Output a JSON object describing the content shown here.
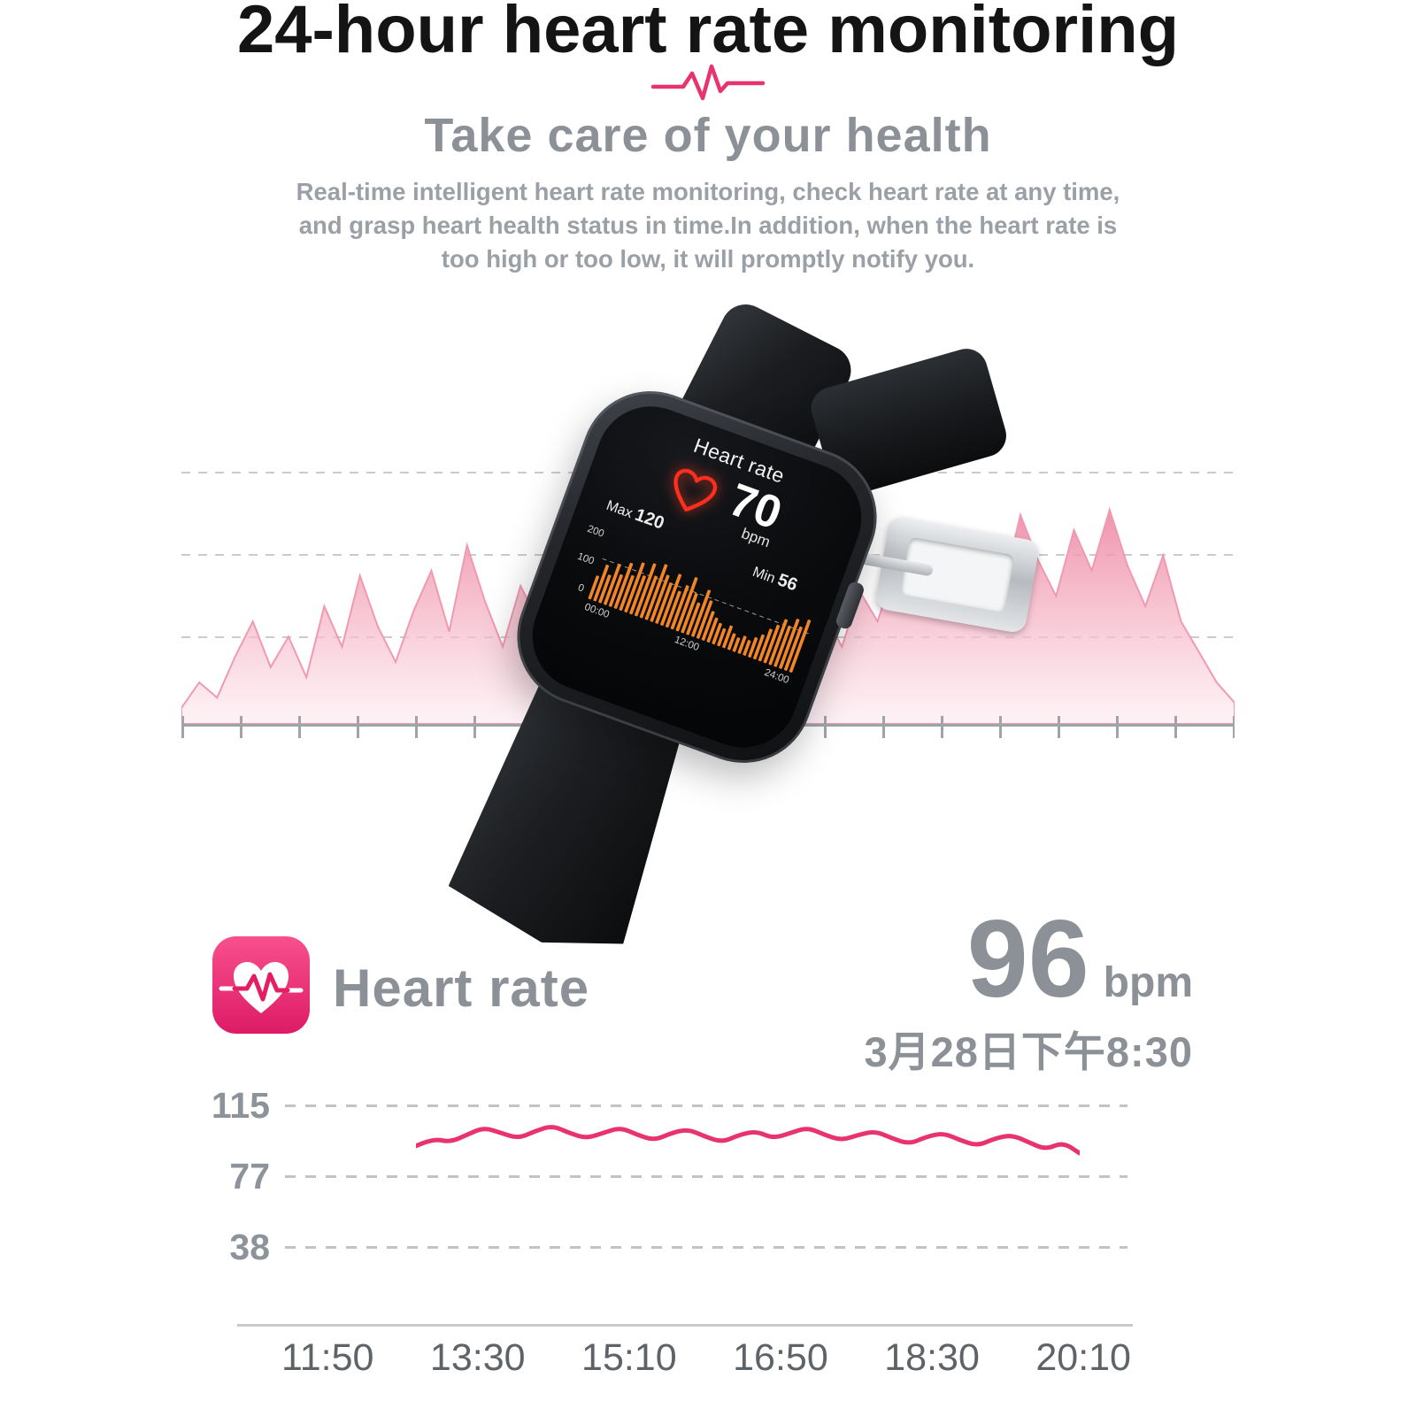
{
  "header": {
    "title": "24-hour heart rate monitoring",
    "subtitle": "Take care of your health",
    "description": [
      "Real-time intelligent heart rate monitoring, check heart rate at any time,",
      "and grasp heart health status in time.In addition, when the heart rate is",
      "too high or too low, it will promptly notify you."
    ],
    "accent_color": "#e8336e"
  },
  "watch_screen": {
    "title": "Heart rate",
    "value": "70",
    "unit": "bpm",
    "max_label": "Max",
    "max_value": "120",
    "min_label": "Min",
    "min_value": "56"
  },
  "summary": {
    "label": "Heart rate",
    "value": "96",
    "unit": "bpm",
    "datetime": "3月28日下午8:30"
  },
  "chart_data": [
    {
      "type": "line",
      "name": "daily-heart-rate",
      "title": "Heart rate through the day (bpm)",
      "x_ticks": [
        "11:50",
        "13:30",
        "15:10",
        "16:50",
        "18:30",
        "20:10"
      ],
      "y_ticks": [
        "115",
        "77",
        "38"
      ],
      "ylim": [
        0,
        140
      ],
      "grid": "dashed-horizontal",
      "legend": "none",
      "color": "#e8336e",
      "series": [
        {
          "name": "heart_rate_bpm",
          "values": [
            93,
            97,
            95,
            99,
            103,
            100,
            97,
            101,
            104,
            100,
            97,
            100,
            103,
            99,
            96,
            100,
            102,
            98,
            95,
            99,
            101,
            97,
            100,
            103,
            99,
            96,
            99,
            101,
            97,
            94,
            98,
            100,
            96,
            93,
            97,
            99,
            95,
            91,
            95,
            89
          ]
        }
      ]
    },
    {
      "type": "bar",
      "name": "watch-screen-bars",
      "title": "24h heart-rate histogram shown on watch screen",
      "x_ticks": [
        "00:00",
        "12:00",
        "24:00"
      ],
      "y_ticks": [
        "200",
        "100",
        "0"
      ],
      "ylim": [
        0,
        200
      ],
      "color": "#f28627",
      "values": [
        40,
        62,
        48,
        70,
        55,
        78,
        60,
        85,
        66,
        90,
        72,
        95,
        80,
        70,
        88,
        62,
        75,
        92,
        68,
        55,
        80,
        65,
        50,
        42,
        36,
        30,
        38,
        28,
        24,
        30,
        26,
        34,
        42,
        55,
        65,
        78,
        70,
        85,
        75,
        90
      ]
    },
    {
      "type": "area",
      "name": "background-waveform",
      "title": "Decorative heart-rate waveform",
      "color": "#ee8aa6",
      "values": [
        6,
        16,
        10,
        26,
        40,
        22,
        34,
        18,
        46,
        30,
        58,
        38,
        24,
        44,
        60,
        36,
        70,
        48,
        30,
        54,
        40,
        64,
        46,
        32,
        50,
        36,
        26,
        40,
        30,
        46,
        34,
        24,
        38,
        28,
        20,
        32,
        44,
        30,
        52,
        40,
        62,
        50,
        74,
        58,
        44,
        68,
        52,
        82,
        64,
        50,
        76,
        60,
        84,
        62,
        46,
        66,
        40,
        28,
        16,
        8
      ]
    }
  ]
}
